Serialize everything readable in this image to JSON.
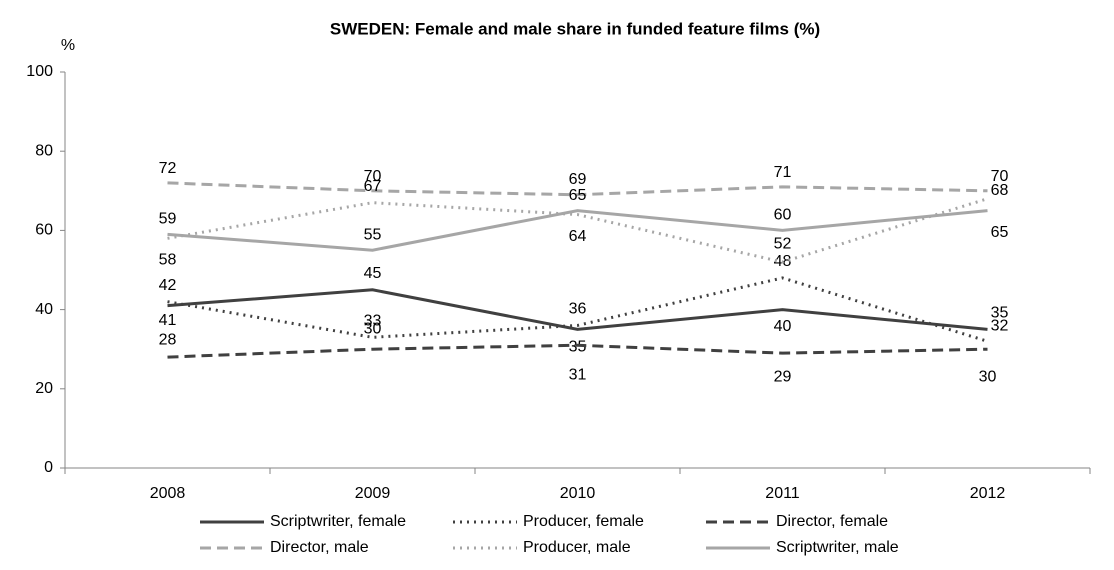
{
  "chart_data": {
    "type": "line",
    "title": "SWEDEN:  Female and male share in funded feature films  (%)",
    "y_label": "%",
    "categories": [
      "2008",
      "2009",
      "2010",
      "2011",
      "2012"
    ],
    "ylim": [
      0,
      100
    ],
    "yticks": [
      0,
      20,
      40,
      60,
      80,
      100
    ],
    "series": [
      {
        "name": "Scriptwriter, female",
        "color": "#404040",
        "style": "solid",
        "values": [
          41,
          45,
          35,
          40,
          35
        ]
      },
      {
        "name": "Producer, female",
        "color": "#404040",
        "style": "dotted",
        "values": [
          42,
          33,
          36,
          48,
          32
        ]
      },
      {
        "name": "Director, female",
        "color": "#404040",
        "style": "dashed",
        "values": [
          28,
          30,
          31,
          29,
          30
        ]
      },
      {
        "name": "Director, male",
        "color": "#a6a6a6",
        "style": "dashed",
        "values": [
          72,
          70,
          69,
          71,
          70
        ]
      },
      {
        "name": "Producer, male",
        "color": "#a6a6a6",
        "style": "dotted",
        "values": [
          58,
          67,
          64,
          52,
          68
        ]
      },
      {
        "name": "Scriptwriter, male",
        "color": "#a6a6a6",
        "style": "solid",
        "values": [
          59,
          55,
          65,
          60,
          65
        ]
      }
    ],
    "legend": "bottom"
  }
}
